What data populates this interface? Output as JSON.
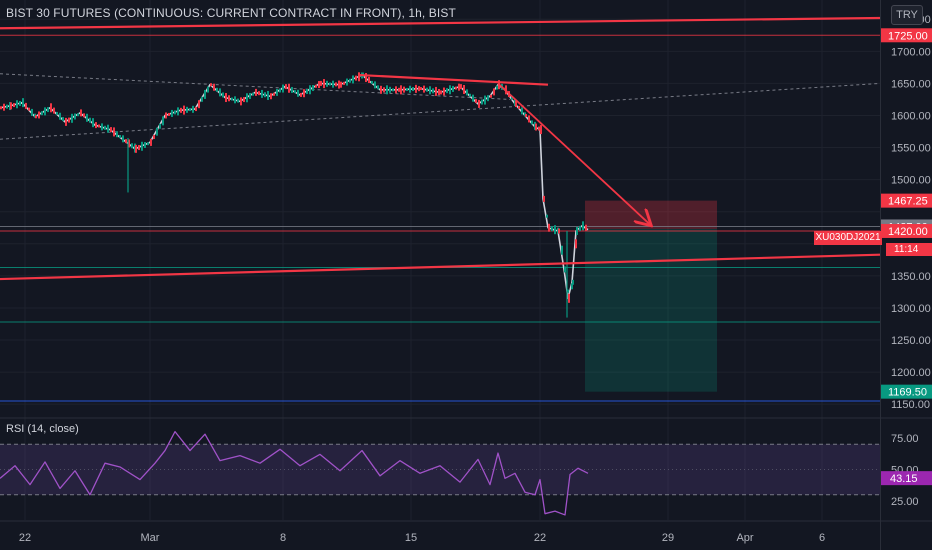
{
  "header": {
    "title": "BIST 30 FUTURES (CONTINUOUS: CURRENT CONTRACT IN FRONT), 1h, BIST",
    "currency": "TRY"
  },
  "price_axis": {
    "labels": [
      "1750.00",
      "1700.00",
      "1650.00",
      "1600.00",
      "1550.00",
      "1500.00",
      "1350.00",
      "1300.00",
      "1250.00",
      "1200.00",
      "1150.00"
    ]
  },
  "badges": [
    {
      "text": "1725.00",
      "color": "#f23645"
    },
    {
      "text": "1467.25",
      "color": "#f23645"
    },
    {
      "text": "1427.00",
      "color": "#787b86"
    },
    {
      "text": "1420.00",
      "color": "#f23645"
    },
    {
      "text": "1169.50",
      "color": "#089981"
    }
  ],
  "symbol_tag": "XU030DJ2021",
  "countdown": "11:14",
  "time_axis": {
    "labels": [
      "22",
      "Mar",
      "8",
      "15",
      "22",
      "29",
      "Apr",
      "6"
    ]
  },
  "rsi": {
    "title": "RSI (14, close)",
    "axis_labels": [
      "75.00",
      "50.00",
      "25.00"
    ],
    "current": "43.15"
  },
  "chart_data": {
    "type": "candlestick",
    "title": "BIST 30 FUTURES (CONTINUOUS: CURRENT CONTRACT IN FRONT), 1h, BIST",
    "x_ticks": [
      "22",
      "Mar",
      "8",
      "15",
      "22",
      "29",
      "Apr",
      "6"
    ],
    "y_ticks": [
      1150,
      1200,
      1250,
      1300,
      1350,
      1400,
      1450,
      1500,
      1550,
      1600,
      1650,
      1700,
      1750
    ],
    "ylim": [
      1130,
      1780
    ],
    "last_price": 1420.0,
    "price_path": [
      [
        0,
        1612
      ],
      [
        10,
        1615
      ],
      [
        22,
        1620
      ],
      [
        35,
        1598
      ],
      [
        50,
        1612
      ],
      [
        65,
        1590
      ],
      [
        80,
        1604
      ],
      [
        95,
        1585
      ],
      [
        110,
        1578
      ],
      [
        125,
        1560
      ],
      [
        135,
        1548
      ],
      [
        150,
        1558
      ],
      [
        165,
        1600
      ],
      [
        180,
        1608
      ],
      [
        195,
        1610
      ],
      [
        210,
        1648
      ],
      [
        225,
        1628
      ],
      [
        240,
        1622
      ],
      [
        255,
        1636
      ],
      [
        270,
        1630
      ],
      [
        285,
        1645
      ],
      [
        300,
        1632
      ],
      [
        320,
        1650
      ],
      [
        340,
        1648
      ],
      [
        362,
        1663
      ],
      [
        380,
        1640
      ],
      [
        400,
        1640
      ],
      [
        420,
        1642
      ],
      [
        440,
        1636
      ],
      [
        460,
        1645
      ],
      [
        478,
        1618
      ],
      [
        490,
        1630
      ],
      [
        498,
        1648
      ],
      [
        505,
        1640
      ],
      [
        515,
        1618
      ],
      [
        525,
        1600
      ],
      [
        535,
        1582
      ],
      [
        540,
        1578
      ],
      [
        543,
        1470
      ],
      [
        548,
        1425
      ],
      [
        558,
        1420
      ],
      [
        564,
        1360
      ],
      [
        568,
        1315
      ],
      [
        572,
        1340
      ],
      [
        576,
        1420
      ],
      [
        582,
        1428
      ],
      [
        588,
        1422
      ]
    ],
    "candle_wicks": [
      {
        "x": 128,
        "high": 1565,
        "low": 1480
      },
      {
        "x": 567,
        "high": 1420,
        "low": 1285
      }
    ],
    "drawings": {
      "trendlines": [
        {
          "x1": 0,
          "y1": 1736,
          "x2": 880,
          "y2": 1752,
          "color": "#f23645"
        },
        {
          "x1": 0,
          "y1": 1345,
          "x2": 880,
          "y2": 1383,
          "color": "#f23645"
        },
        {
          "x1": 360,
          "y1": 1663,
          "x2": 548,
          "y2": 1648,
          "color": "#f23645"
        },
        {
          "x1": 498,
          "y1": 1650,
          "x2": 650,
          "y2": 1430,
          "color": "#f23645",
          "arrow": true
        }
      ],
      "dashed_channel": [
        {
          "x1": 0,
          "y1": 1665,
          "x2": 510,
          "y2": 1625
        },
        {
          "x1": 0,
          "y1": 1563,
          "x2": 880,
          "y2": 1650
        }
      ],
      "hlines": [
        {
          "y": 1725,
          "color": "#f23645"
        },
        {
          "y": 1427,
          "color": "#787b86"
        },
        {
          "y": 1420,
          "color": "#f23645"
        },
        {
          "y": 1363,
          "color": "#089981"
        },
        {
          "y": 1278,
          "color": "#089981"
        },
        {
          "y": 1155,
          "color": "#2962ff"
        }
      ],
      "short_position": {
        "x1": 585,
        "x2": 717,
        "stop": 1467.25,
        "entry": 1423,
        "target": 1169.5
      }
    },
    "rsi": {
      "ylim": [
        10,
        90
      ],
      "bands": [
        70,
        30
      ],
      "current": 43.15,
      "path": [
        [
          0,
          43
        ],
        [
          15,
          53
        ],
        [
          30,
          38
        ],
        [
          45,
          56
        ],
        [
          60,
          35
        ],
        [
          75,
          49
        ],
        [
          90,
          30
        ],
        [
          105,
          55
        ],
        [
          120,
          52
        ],
        [
          140,
          42
        ],
        [
          155,
          55
        ],
        [
          165,
          65
        ],
        [
          175,
          80
        ],
        [
          190,
          65
        ],
        [
          205,
          78
        ],
        [
          220,
          57
        ],
        [
          240,
          61
        ],
        [
          260,
          55
        ],
        [
          280,
          66
        ],
        [
          300,
          53
        ],
        [
          320,
          62
        ],
        [
          340,
          49
        ],
        [
          362,
          65
        ],
        [
          380,
          45
        ],
        [
          400,
          57
        ],
        [
          420,
          47
        ],
        [
          440,
          53
        ],
        [
          460,
          40
        ],
        [
          478,
          58
        ],
        [
          490,
          38
        ],
        [
          498,
          63
        ],
        [
          505,
          43
        ],
        [
          515,
          47
        ],
        [
          525,
          32
        ],
        [
          535,
          30
        ],
        [
          540,
          42
        ],
        [
          545,
          15
        ],
        [
          555,
          17
        ],
        [
          565,
          14
        ],
        [
          570,
          46
        ],
        [
          578,
          51
        ],
        [
          588,
          47
        ]
      ]
    },
    "grid": true
  }
}
